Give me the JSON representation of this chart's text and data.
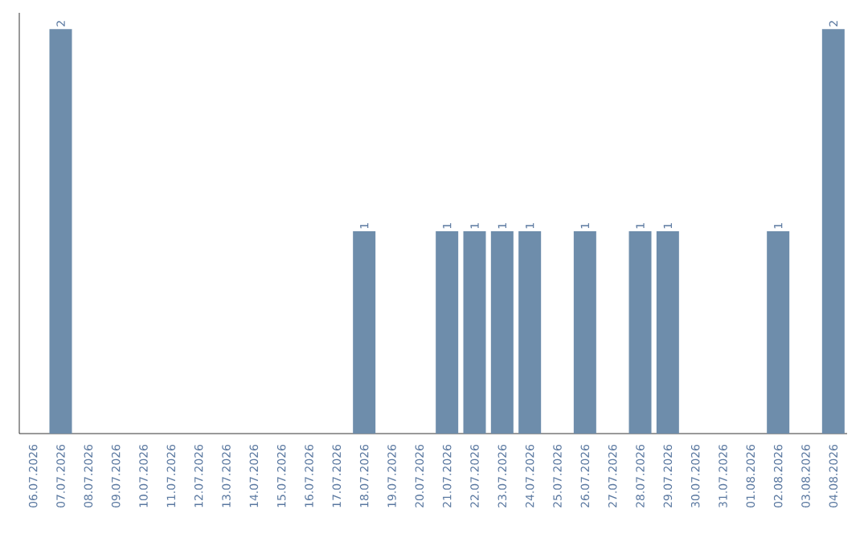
{
  "chart_data": {
    "type": "bar",
    "categories": [
      "06.07.2026",
      "07.07.2026",
      "08.07.2026",
      "09.07.2026",
      "10.07.2026",
      "11.07.2026",
      "12.07.2026",
      "13.07.2026",
      "14.07.2026",
      "15.07.2026",
      "16.07.2026",
      "17.07.2026",
      "18.07.2026",
      "19.07.2026",
      "20.07.2026",
      "21.07.2026",
      "22.07.2026",
      "23.07.2026",
      "24.07.2026",
      "25.07.2026",
      "26.07.2026",
      "27.07.2026",
      "28.07.2026",
      "29.07.2026",
      "30.07.2026",
      "31.07.2026",
      "01.08.2026",
      "02.08.2026",
      "03.08.2026",
      "04.08.2026"
    ],
    "values": [
      0,
      2,
      0,
      0,
      0,
      0,
      0,
      0,
      0,
      0,
      0,
      0,
      1,
      0,
      0,
      1,
      1,
      1,
      1,
      0,
      1,
      0,
      1,
      1,
      0,
      0,
      0,
      1,
      0,
      2
    ],
    "value_labels": [
      null,
      "2",
      null,
      null,
      null,
      null,
      null,
      null,
      null,
      null,
      null,
      null,
      "1",
      null,
      null,
      "1",
      "1",
      "1",
      "1",
      null,
      "1",
      null,
      "1",
      "1",
      null,
      null,
      null,
      "1",
      null,
      "2"
    ],
    "color": "#6e8dab"
  }
}
